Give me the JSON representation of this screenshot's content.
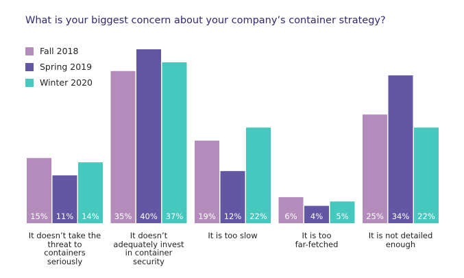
{
  "chart_data": {
    "type": "bar",
    "title": "What is your biggest concern about your company’s container strategy?",
    "categories": [
      "It doesn’t take the\nthreat to\ncontainers\nseriously",
      "It doesn’t\nadequately invest\nin container\nsecurity",
      "It is too slow",
      "It is too\nfar-fetched",
      "It is not detailed\nenough"
    ],
    "series": [
      {
        "name": "Fall 2018",
        "values": [
          15,
          35,
          19,
          6,
          25
        ],
        "labels": [
          "15%",
          "35%",
          "19%",
          "6%",
          "25%"
        ],
        "color": "#b48cbc"
      },
      {
        "name": "Spring 2019",
        "values": [
          11,
          40,
          12,
          4,
          34
        ],
        "labels": [
          "11%",
          "40%",
          "12%",
          "4%",
          "34%"
        ],
        "color": "#6157a2"
      },
      {
        "name": "Winter 2020",
        "values": [
          14,
          37,
          22,
          5,
          22
        ],
        "labels": [
          "14%",
          "37%",
          "22%",
          "5%",
          "22%"
        ],
        "color": "#47c8bf"
      }
    ],
    "legend_position": "top-left",
    "grid": false,
    "ylim": [
      0,
      40
    ]
  }
}
